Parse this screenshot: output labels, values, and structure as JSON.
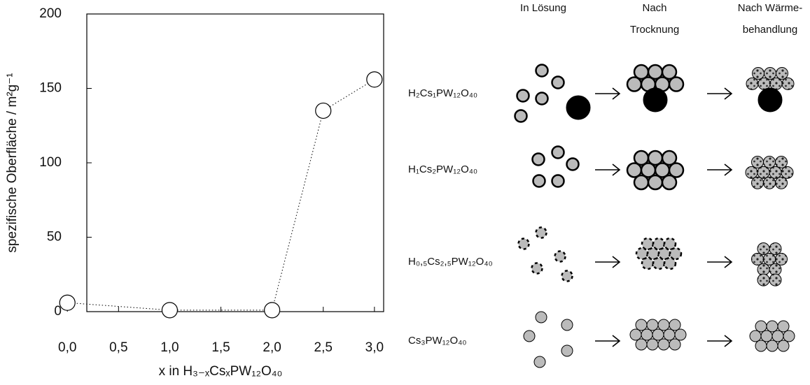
{
  "chart_data": {
    "type": "scatter",
    "x_label": "x in H₃₋ₓCsₓPW₁₂O₄₀",
    "y_label": "spezifische Oberfläche / m²g⁻¹",
    "series": [
      {
        "color": "#ffffff",
        "x": [
          0,
          1,
          2,
          2.5,
          3
        ],
        "values": [
          6,
          1,
          1,
          135,
          156
        ]
      }
    ],
    "xlim": [
      0.19,
      3.09
    ],
    "xticks": [
      {
        "value": 0,
        "label": "0,0"
      },
      {
        "value": 0.5,
        "label": "0,5"
      },
      {
        "value": 1,
        "label": "1,0"
      },
      {
        "value": 1.5,
        "label": "1,5"
      },
      {
        "value": 2,
        "label": "2,0"
      },
      {
        "value": 2.5,
        "label": "2,5"
      },
      {
        "value": 3,
        "label": "3,0"
      }
    ],
    "ylim": [
      0,
      200
    ],
    "yticks": [
      0,
      50,
      100,
      150,
      200
    ]
  },
  "diagram": {
    "columns": [
      [
        "In Lösung"
      ],
      [
        "Nach",
        "Trocknung"
      ],
      [
        "Nach Wärme-",
        "behandlung"
      ]
    ],
    "rows": [
      "H₂Cs₁PW₁₂O₄₀",
      "H₁Cs₂PW₁₂O₄₀",
      "H₀,₅Cs₂,₅PW₁₂O₄₀",
      "Cs₃PW₁₂O₄₀"
    ]
  }
}
